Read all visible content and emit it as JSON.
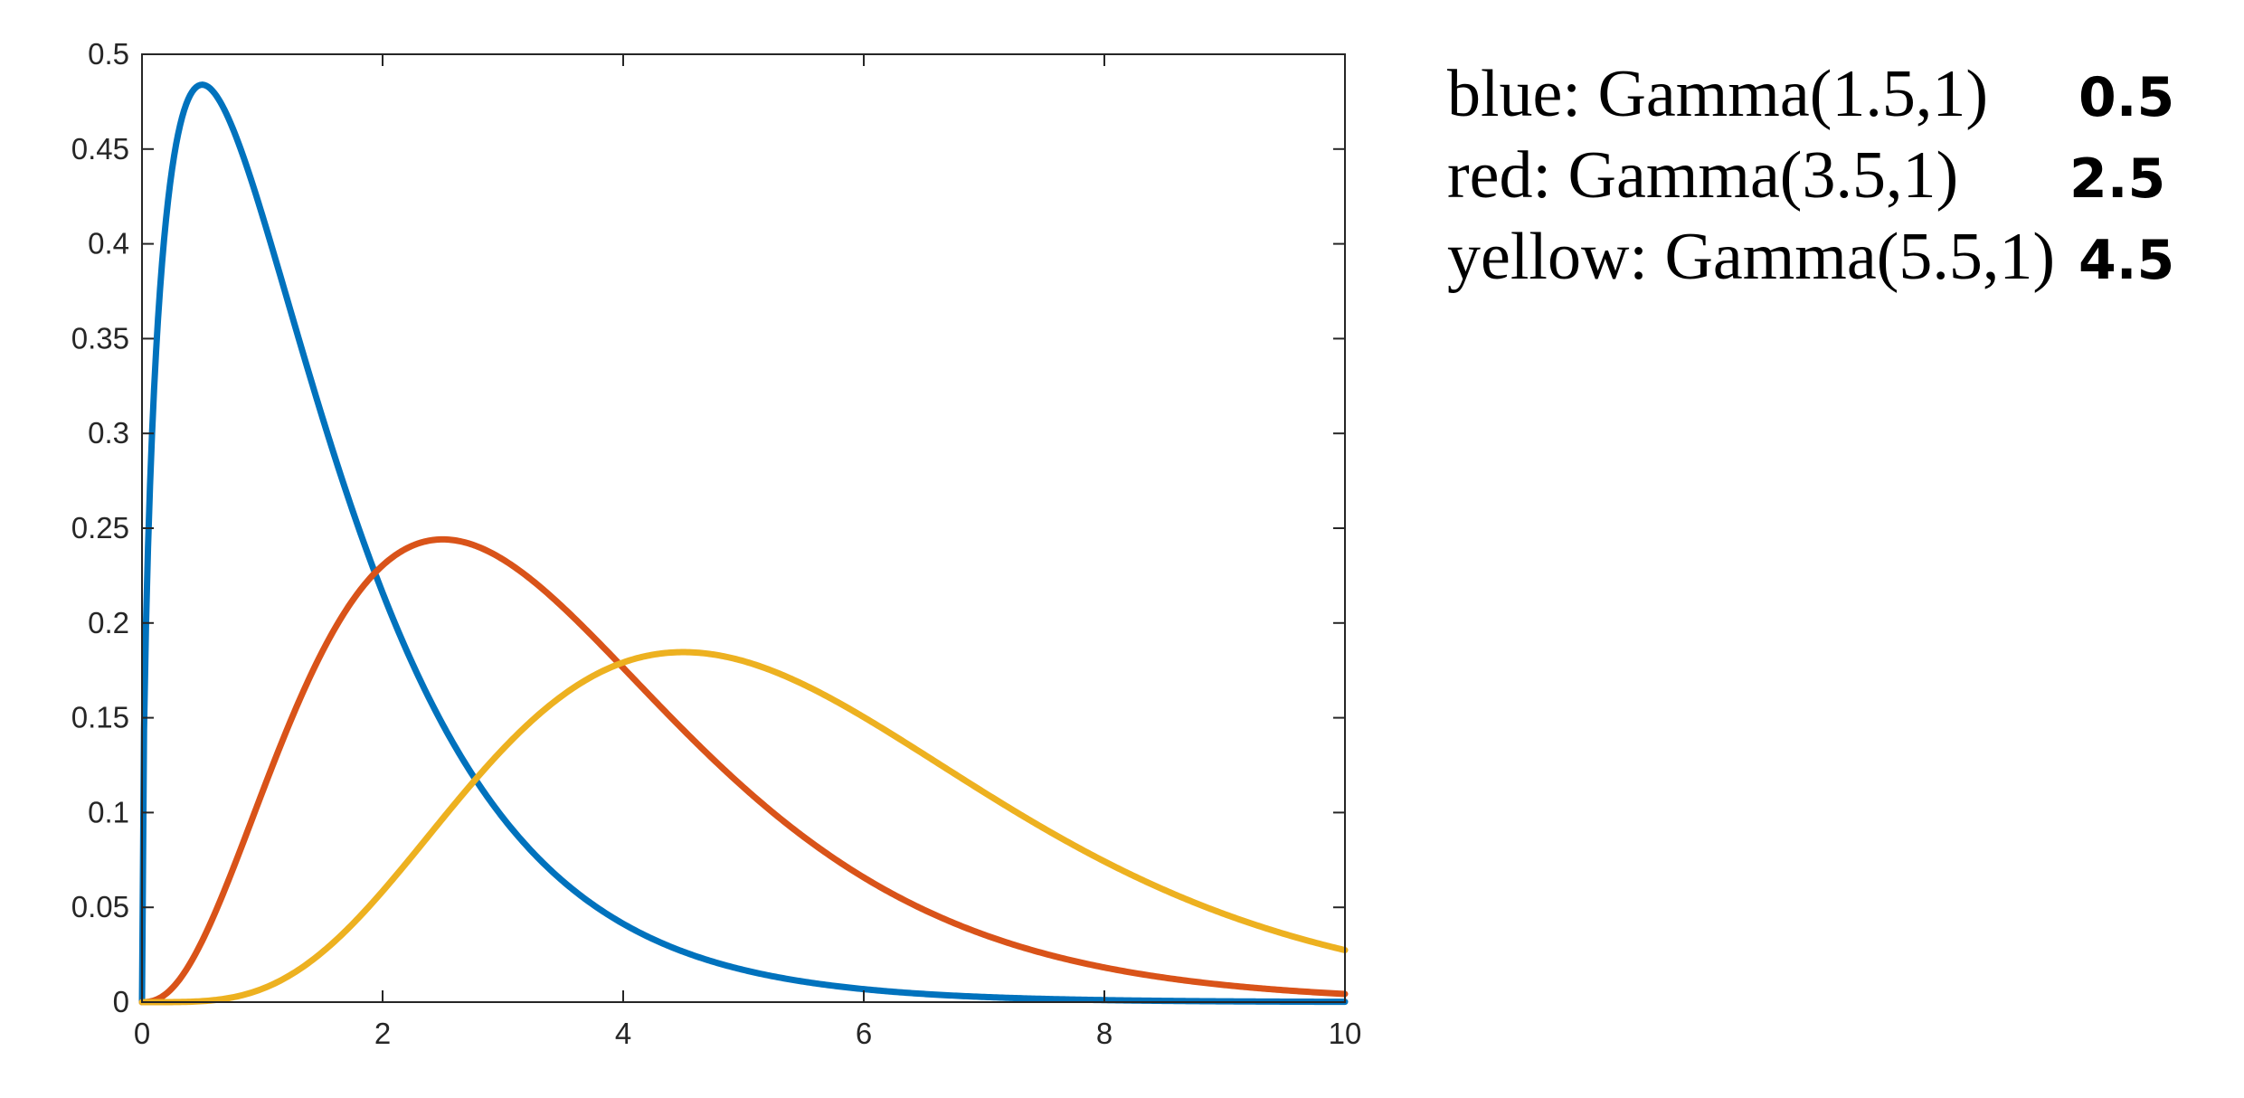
{
  "chart_data": {
    "type": "line",
    "title": "",
    "xlabel": "",
    "ylabel": "",
    "xlim": [
      0,
      10
    ],
    "ylim": [
      0,
      0.5
    ],
    "x_ticks": [
      "0",
      "2",
      "4",
      "6",
      "8",
      "10"
    ],
    "y_ticks": [
      "0",
      "0.05",
      "0.1",
      "0.15",
      "0.2",
      "0.25",
      "0.3",
      "0.35",
      "0.4",
      "0.45",
      "0.5"
    ],
    "grid": false,
    "series": [
      {
        "color": "#0072BD",
        "shape": 1.5,
        "scale": 1,
        "x": [
          0,
          0.1,
          0.2,
          0.3,
          0.4,
          0.5,
          0.6,
          0.8,
          1,
          1.5,
          2,
          2.5,
          3,
          3.5,
          4,
          4.5,
          5,
          6,
          7,
          8,
          9,
          10
        ],
        "y": [
          0,
          0.323,
          0.414,
          0.458,
          0.477,
          0.484,
          0.481,
          0.455,
          0.415,
          0.308,
          0.208,
          0.133,
          0.083,
          0.05,
          0.03,
          0.017,
          0.01,
          0.0033,
          0.001,
          0.0003,
          0.0001,
          3e-05
        ]
      },
      {
        "color": "#D95319",
        "shape": 3.5,
        "scale": 1,
        "x": [
          0,
          0.25,
          0.5,
          0.75,
          1,
          1.5,
          2,
          2.5,
          3,
          3.5,
          4,
          4.5,
          5,
          5.5,
          6,
          6.5,
          7,
          7.5,
          8,
          8.5,
          9,
          9.5,
          10
        ],
        "y": [
          0,
          0.0102,
          0.0485,
          0.102,
          0.113,
          0.182,
          0.226,
          0.244,
          0.238,
          0.215,
          0.183,
          0.148,
          0.116,
          0.087,
          0.064,
          0.046,
          0.032,
          0.022,
          0.015,
          0.01,
          0.0065,
          0.0042,
          0.0026
        ]
      },
      {
        "color": "#EDB120",
        "shape": 5.5,
        "scale": 1,
        "x": [
          0,
          0.5,
          1,
          1.5,
          2,
          2.5,
          3,
          3.5,
          4,
          4.5,
          5,
          5.5,
          6,
          6.5,
          7,
          7.5,
          8,
          8.5,
          9,
          9.5,
          10
        ],
        "y": [
          0,
          0.001,
          0.0073,
          0.0257,
          0.056,
          0.0932,
          0.13,
          0.161,
          0.18,
          0.184,
          0.179,
          0.164,
          0.145,
          0.124,
          0.103,
          0.083,
          0.065,
          0.05,
          0.038,
          0.029,
          0.027
        ]
      }
    ]
  },
  "legend": {
    "lines": [
      {
        "text": "blue: Gamma(1.5,1)",
        "note": "0.5"
      },
      {
        "text": "red: Gamma(3.5,1)",
        "note": "2.5"
      },
      {
        "text": "yellow: Gamma(5.5,1)",
        "note": "4.5"
      }
    ]
  }
}
